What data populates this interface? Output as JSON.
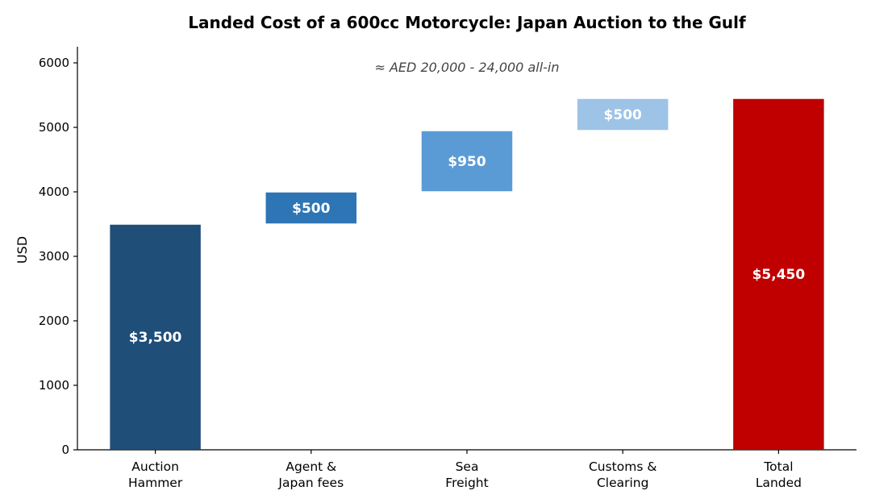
{
  "chart_data": {
    "type": "bar",
    "title": "Landed Cost of a 600cc Motorcycle: Japan Auction to the Gulf",
    "xlabel": "",
    "ylabel": "USD",
    "ylim": [
      0,
      6250
    ],
    "yticks": [
      0,
      1000,
      2000,
      3000,
      4000,
      5000,
      6000
    ],
    "grid": false,
    "annotation": "≈ AED 20,000 - 24,000 all-in",
    "steps": [
      {
        "category": [
          "Auction",
          "Hammer"
        ],
        "value": 3500,
        "start": 0,
        "end": 3500,
        "label": "$3,500",
        "color": "#1f4e79"
      },
      {
        "category": [
          "Agent &",
          "Japan fees"
        ],
        "value": 500,
        "start": 3500,
        "end": 4000,
        "label": "$500",
        "color": "#2e75b6"
      },
      {
        "category": [
          "Sea",
          "Freight"
        ],
        "value": 950,
        "start": 4000,
        "end": 4950,
        "label": "$950",
        "color": "#5b9bd5"
      },
      {
        "category": [
          "Customs &",
          "Clearing"
        ],
        "value": 500,
        "start": 4950,
        "end": 5450,
        "label": "$500",
        "color": "#9dc3e6"
      },
      {
        "category": [
          "Total",
          "Landed"
        ],
        "value": 5450,
        "start": 0,
        "end": 5450,
        "label": "$5,450",
        "color": "#c00000"
      }
    ]
  }
}
